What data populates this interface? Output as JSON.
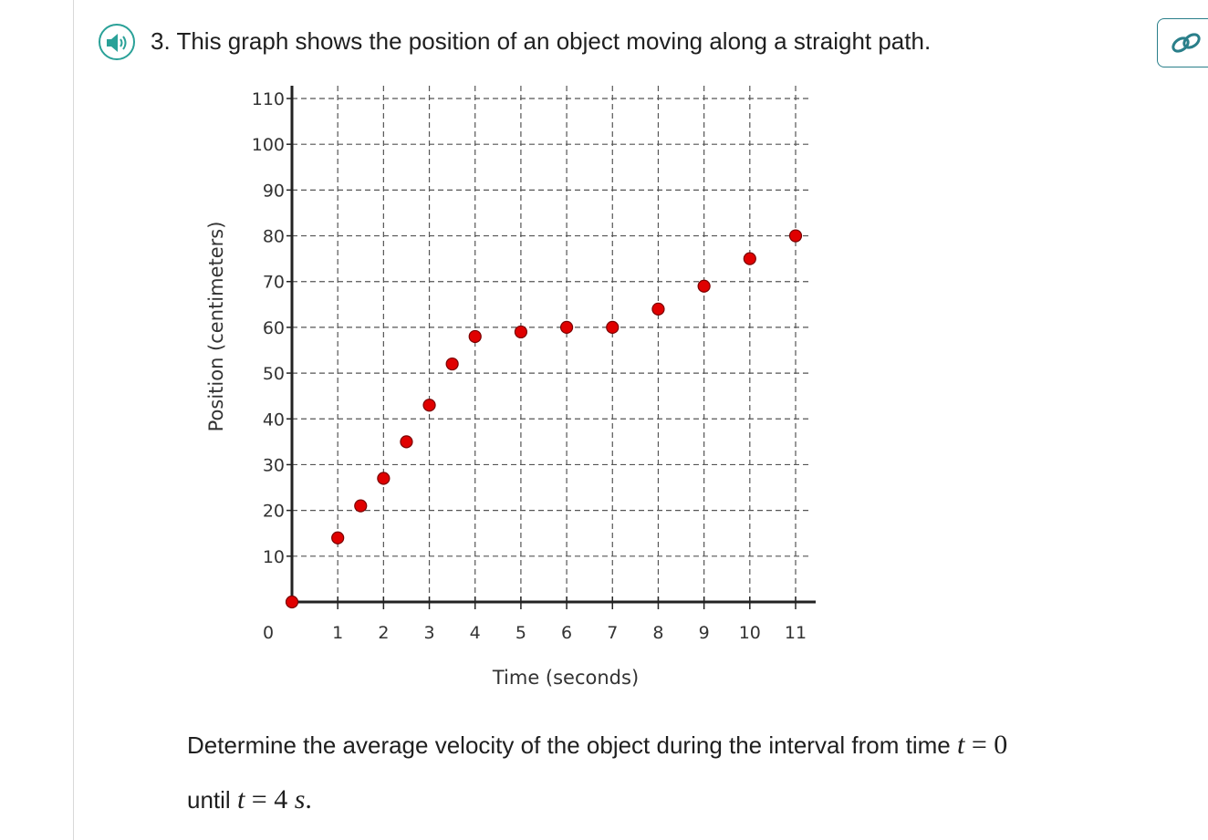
{
  "question": {
    "number": "3.",
    "title": "This graph shows the position of an object moving along a straight path.",
    "audio_icon": "speaker-icon",
    "link_icon": "link-icon"
  },
  "prompt": {
    "line1_text": "Determine the average velocity of the object during the interval from time",
    "line1_math_var": "t",
    "line1_math_rest": " = 0",
    "line2_text": "until",
    "line2_math_var": "t",
    "line2_math_rest": " = 4",
    "line2_math_unit": "s",
    "line2_math_end": "."
  },
  "colors": {
    "accent": "#2aa198",
    "point": "#e00000",
    "axis": "#222222"
  },
  "chart_data": {
    "type": "scatter",
    "xlabel": "Time (seconds)",
    "ylabel": "Position (centimeters)",
    "xlim": [
      0,
      11
    ],
    "ylim": [
      0,
      110
    ],
    "x_ticks": [
      0,
      1,
      2,
      3,
      4,
      5,
      6,
      7,
      8,
      9,
      10,
      11
    ],
    "y_ticks": [
      10,
      20,
      30,
      40,
      50,
      60,
      70,
      80,
      90,
      100,
      110
    ],
    "grid": "dashed",
    "points": [
      {
        "x": 0,
        "y": 0
      },
      {
        "x": 1,
        "y": 14
      },
      {
        "x": 1.5,
        "y": 21
      },
      {
        "x": 2,
        "y": 27
      },
      {
        "x": 2.5,
        "y": 35
      },
      {
        "x": 3,
        "y": 43
      },
      {
        "x": 3.5,
        "y": 52
      },
      {
        "x": 4,
        "y": 58
      },
      {
        "x": 5,
        "y": 59
      },
      {
        "x": 6,
        "y": 60
      },
      {
        "x": 7,
        "y": 60
      },
      {
        "x": 8,
        "y": 64
      },
      {
        "x": 9,
        "y": 69
      },
      {
        "x": 10,
        "y": 75
      },
      {
        "x": 11,
        "y": 80
      }
    ]
  }
}
